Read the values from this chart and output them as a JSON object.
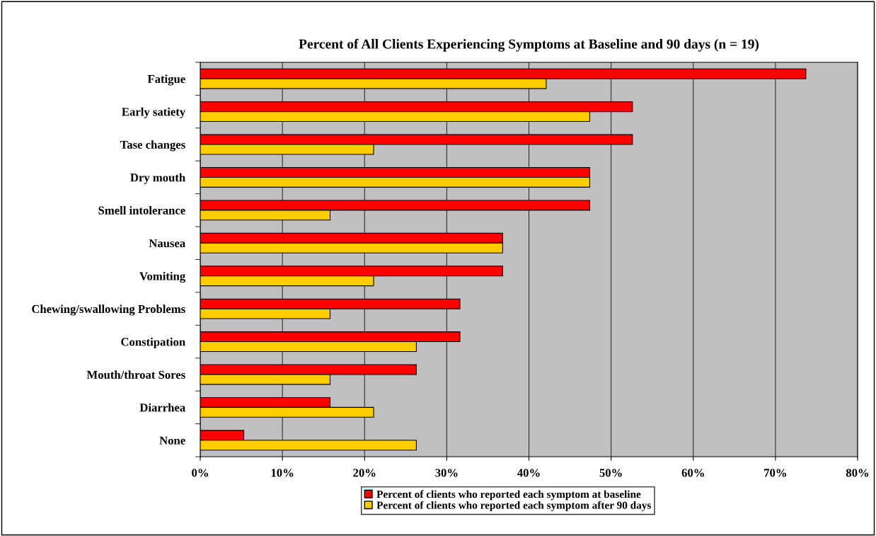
{
  "chart_data": {
    "type": "bar",
    "orientation": "horizontal",
    "title": "Percent of All Clients Experiencing Symptoms at Baseline and 90 days (n = 19)",
    "categories": [
      "Fatigue",
      "Early satiety",
      "Tase changes",
      "Dry mouth",
      "Smell intolerance",
      "Nausea",
      "Vomiting",
      "Chewing/swallowing Problems",
      "Constipation",
      "Mouth/throat Sores",
      "Diarrhea",
      "None"
    ],
    "series": [
      {
        "name": "Percent of clients who reported each symptom at baseline",
        "color": "#ff0000",
        "values": [
          73.7,
          52.6,
          52.6,
          47.4,
          47.4,
          36.8,
          36.8,
          31.6,
          31.6,
          26.3,
          15.8,
          5.3
        ]
      },
      {
        "name": "Percent of clients who reported each symptom after 90 days",
        "color": "#ffcc00",
        "values": [
          42.1,
          47.4,
          21.1,
          47.4,
          15.8,
          36.8,
          21.1,
          15.8,
          26.3,
          15.8,
          21.1,
          26.3
        ]
      }
    ],
    "xlim": [
      0,
      80
    ],
    "xticks": [
      {
        "value": 0,
        "label": "0%"
      },
      {
        "value": 10,
        "label": "10%"
      },
      {
        "value": 20,
        "label": "20%"
      },
      {
        "value": 30,
        "label": "30%"
      },
      {
        "value": 40,
        "label": "40%"
      },
      {
        "value": 50,
        "label": "50%"
      },
      {
        "value": 60,
        "label": "60%"
      },
      {
        "value": 70,
        "label": "70%"
      },
      {
        "value": 80,
        "label": "80%"
      }
    ],
    "grid": "x",
    "legend": "bottom"
  }
}
